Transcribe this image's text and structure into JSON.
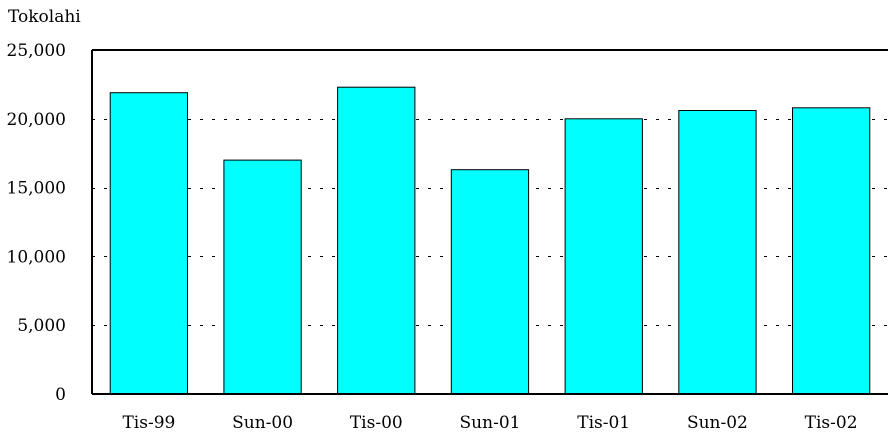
{
  "chart_data": {
    "type": "bar",
    "ylabel": "Tokolahi",
    "categories": [
      "Tis-99",
      "Sun-00",
      "Tis-00",
      "Sun-01",
      "Tis-01",
      "Sun-02",
      "Tis-02"
    ],
    "values": [
      21900,
      17000,
      22300,
      16300,
      20000,
      20600,
      20800
    ],
    "ylim": [
      0,
      25000
    ],
    "yticks": [
      0,
      5000,
      10000,
      15000,
      20000,
      25000
    ],
    "ytick_labels": [
      "0",
      "5,000",
      "10,000",
      "15,000",
      "20,000",
      "25,000"
    ],
    "grid": "dashed horizontal",
    "colors": {
      "bar_fill": "#00FFFF",
      "bar_stroke": "#000000",
      "axis": "#000000",
      "grid": "#000000"
    }
  }
}
